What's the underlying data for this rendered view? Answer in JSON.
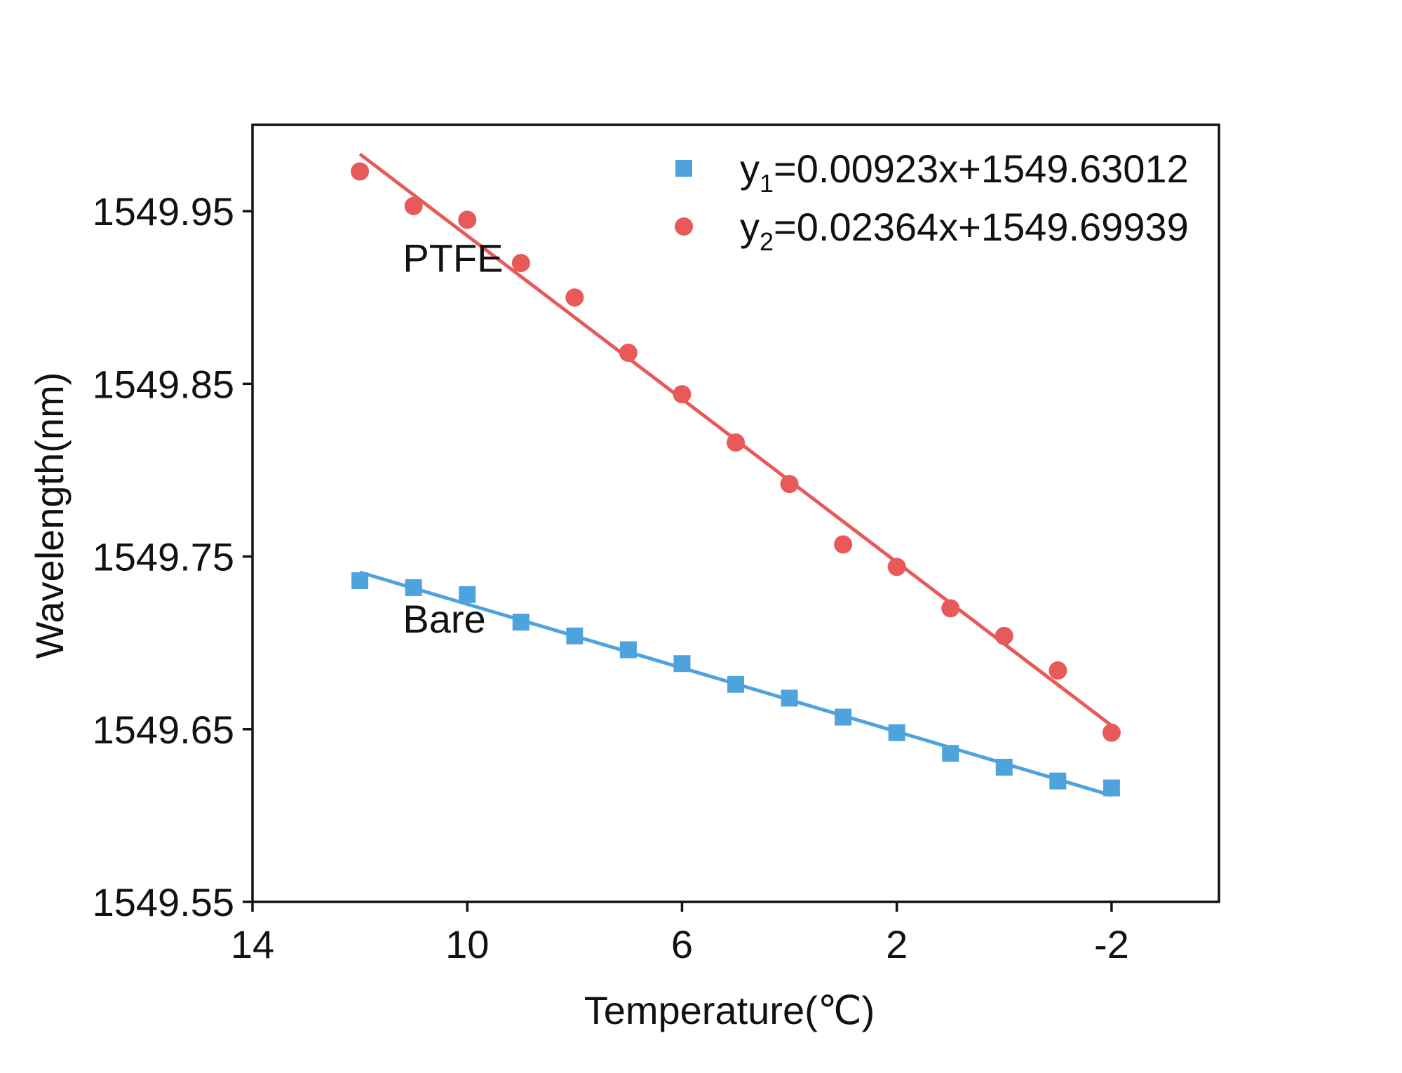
{
  "chart_data": {
    "type": "scatter",
    "title": "",
    "xlabel": "Temperature(℃)",
    "ylabel": "Wavelength(nm)",
    "xlim": [
      14,
      -4
    ],
    "ylim": [
      1549.55,
      1550.0
    ],
    "xticks": [
      14,
      10,
      6,
      2,
      -2
    ],
    "xtick_labels": [
      "14",
      "10",
      "6",
      "2",
      "-2"
    ],
    "yticks": [
      1549.55,
      1549.65,
      1549.75,
      1549.85,
      1549.95
    ],
    "ytick_labels": [
      "1549.55",
      "1549.65",
      "1549.75",
      "1549.85",
      "1549.95"
    ],
    "annotations": [
      {
        "text": "PTFE",
        "x": 11.2,
        "y": 1549.915
      },
      {
        "text": "Bare",
        "x": 11.2,
        "y": 1549.706
      }
    ],
    "series": [
      {
        "name": "Bare",
        "marker": "square",
        "color": "#4fa3dd",
        "legend_prefix": "y",
        "legend_sub": "1",
        "legend_suffix": "=0.00923x+1549.63012",
        "fit": {
          "slope": 0.00923,
          "intercept": 1549.63012,
          "x_range": [
            12,
            -2
          ]
        },
        "x": [
          12,
          11,
          10,
          9,
          8,
          7,
          6,
          5,
          4,
          3,
          2,
          1,
          0,
          -1,
          -2
        ],
        "y": [
          1549.736,
          1549.732,
          1549.728,
          1549.712,
          1549.704,
          1549.696,
          1549.688,
          1549.676,
          1549.668,
          1549.657,
          1549.648,
          1549.636,
          1549.628,
          1549.62,
          1549.616
        ]
      },
      {
        "name": "PTFE",
        "marker": "circle",
        "color": "#e85a5a",
        "legend_prefix": "y",
        "legend_sub": "2",
        "legend_suffix": "=0.02364x+1549.69939",
        "fit": {
          "slope": 0.02364,
          "intercept": 1549.69939,
          "x_range": [
            12,
            -2
          ]
        },
        "x": [
          12,
          11,
          10,
          9,
          8,
          7,
          6,
          5,
          4,
          3,
          2,
          1,
          0,
          -1,
          -2
        ],
        "y": [
          1549.973,
          1549.953,
          1549.945,
          1549.92,
          1549.9,
          1549.868,
          1549.844,
          1549.816,
          1549.792,
          1549.757,
          1549.744,
          1549.72,
          1549.704,
          1549.684,
          1549.648
        ]
      }
    ]
  }
}
